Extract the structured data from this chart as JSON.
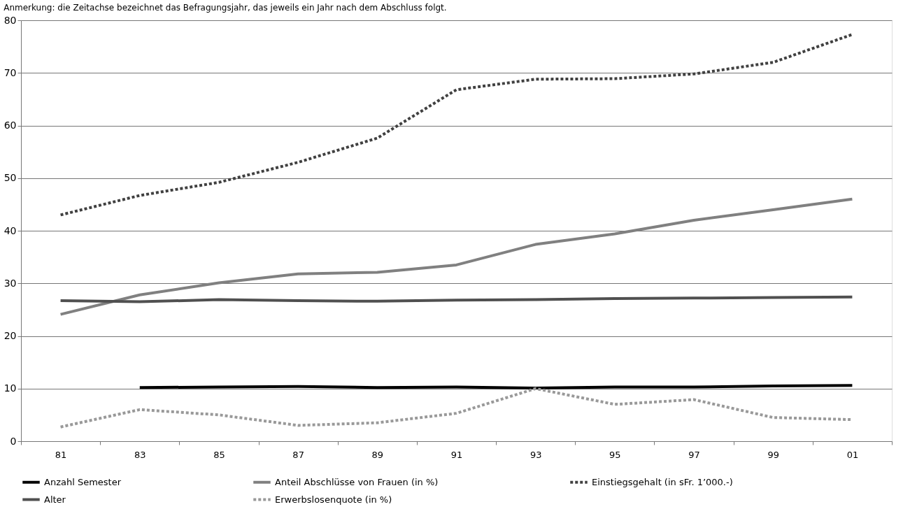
{
  "chart_data": {
    "type": "line",
    "title": "Anmerkung: die Zeitachse bezeichnet das Befragungsjahr, das jeweils ein Jahr nach dem Abschluss folgt.",
    "categories": [
      "81",
      "83",
      "85",
      "87",
      "89",
      "91",
      "93",
      "95",
      "97",
      "99",
      "01"
    ],
    "series": [
      {
        "name": "Anzahl Semester",
        "color": "#000000",
        "line_style": "solid",
        "values": [
          null,
          10.2,
          10.3,
          10.4,
          10.2,
          10.3,
          10.1,
          10.3,
          10.3,
          10.5,
          10.6
        ]
      },
      {
        "name": "Anteil Abschlüsse von Frauen (in %)",
        "color": "#808080",
        "line_style": "solid",
        "values": [
          24.1,
          27.8,
          30.1,
          31.8,
          32.1,
          33.5,
          37.4,
          39.4,
          42.0,
          44.0,
          46.0
        ]
      },
      {
        "name": "Einstiegsgehalt (in sFr. 1’000.-)",
        "color": "#404040",
        "line_style": "dotted",
        "values": [
          43.0,
          46.7,
          49.2,
          53.0,
          57.6,
          66.8,
          68.8,
          68.9,
          69.8,
          72.0,
          77.3
        ]
      },
      {
        "name": "Alter",
        "color": "#505050",
        "line_style": "solid",
        "values": [
          26.7,
          26.5,
          26.9,
          26.7,
          26.6,
          26.8,
          26.9,
          27.1,
          27.2,
          27.3,
          27.4
        ]
      },
      {
        "name": "Erwerbslosenquote (in %)",
        "color": "#999999",
        "line_style": "dotted",
        "values": [
          2.7,
          6.0,
          5.0,
          3.0,
          3.5,
          5.3,
          10.0,
          7.0,
          7.9,
          4.5,
          4.1
        ]
      }
    ],
    "ylim": [
      0,
      80
    ],
    "yticks": [
      0,
      10,
      20,
      30,
      40,
      50,
      60,
      70,
      80
    ],
    "grid": "y",
    "legend": "bottom"
  }
}
